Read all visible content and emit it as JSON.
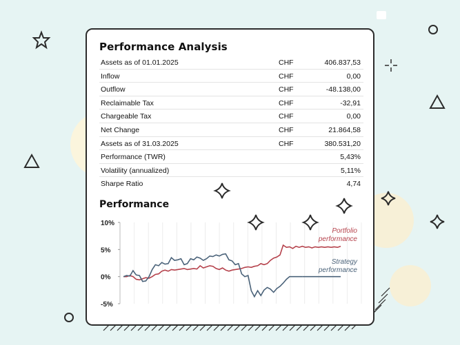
{
  "card": {
    "title": "Performance Analysis",
    "rows": [
      {
        "label": "Assets as of 01.01.2025",
        "currency": "CHF",
        "value": "406.837,53"
      },
      {
        "label": "Inflow",
        "currency": "CHF",
        "value": "0,00"
      },
      {
        "label": "Outflow",
        "currency": "CHF",
        "value": "-48.138,00"
      },
      {
        "label": "Reclaimable Tax",
        "currency": "CHF",
        "value": "-32,91"
      },
      {
        "label": "Chargeable Tax",
        "currency": "CHF",
        "value": "0,00"
      },
      {
        "label": "Net Change",
        "currency": "CHF",
        "value": "21.864,58"
      },
      {
        "label": "Assets as of 31.03.2025",
        "currency": "CHF",
        "value": "380.531,20"
      },
      {
        "label": "Performance (TWR)",
        "currency": "",
        "value": "5,43%"
      },
      {
        "label": "Volatility (annualized)",
        "currency": "",
        "value": "5,11%"
      },
      {
        "label": "Sharpe Ratio",
        "currency": "",
        "value": "4,74"
      }
    ],
    "chart_title": "Performance"
  },
  "colors": {
    "portfolio": "#b5414b",
    "strategy": "#4a6279",
    "background": "#e6f4f3"
  },
  "chart_data": {
    "type": "line",
    "title": "Performance",
    "ylim": [
      -5,
      10
    ],
    "yticks": [
      "10%",
      "5%",
      "0%",
      "-5%"
    ],
    "ytick_values": [
      10,
      5,
      0,
      -5
    ],
    "grid": "vertical",
    "legend": "right",
    "series": [
      {
        "name_lines": [
          "Portfolio",
          "performance"
        ],
        "color": "#b5414b",
        "values": [
          0,
          0,
          0.2,
          0,
          -0.5,
          -0.6,
          -0.4,
          -0.2,
          -0.3,
          0,
          0.4,
          0.5,
          1.0,
          1.2,
          1.0,
          1.3,
          1.2,
          1.3,
          1.4,
          1.5,
          1.3,
          1.4,
          1.5,
          1.4,
          2.0,
          1.6,
          1.8,
          2.0,
          1.9,
          1.5,
          1.3,
          1.6,
          1.2,
          1.0,
          1.2,
          1.3,
          1.4,
          1.5,
          1.7,
          1.8,
          1.7,
          1.9,
          2.0,
          2.4,
          2.2,
          2.4,
          3.0,
          3.4,
          3.6,
          4.0,
          5.8,
          5.4,
          5.5,
          5.2,
          5.6,
          5.4,
          5.6,
          5.4,
          5.5,
          5.3,
          5.5,
          5.4,
          5.5,
          5.4,
          5.5,
          5.4,
          5.5,
          5.4,
          5.6
        ]
      },
      {
        "name_lines": [
          "Strategy",
          "performance"
        ],
        "color": "#4a6279",
        "values": [
          0,
          0.2,
          0.1,
          1.1,
          0.3,
          0.2,
          -0.9,
          -0.8,
          0,
          1.3,
          2.2,
          2.0,
          2.6,
          2.3,
          2.4,
          3.5,
          3.0,
          3.1,
          3.3,
          2.2,
          2.4,
          3.3,
          3.1,
          3.6,
          3.4,
          3.0,
          3.3,
          3.8,
          3.7,
          4.0,
          3.8,
          4.1,
          4.2,
          3.1,
          2.9,
          2.2,
          2.4,
          0.5,
          0.0,
          0.2,
          -2.6,
          -3.7,
          -2.6,
          -3.5,
          -2.5,
          -2.0,
          -2.3,
          -2.9,
          -2.2,
          -1.8,
          -1.2,
          -0.5,
          0,
          0,
          0,
          0,
          0
        ]
      }
    ]
  }
}
